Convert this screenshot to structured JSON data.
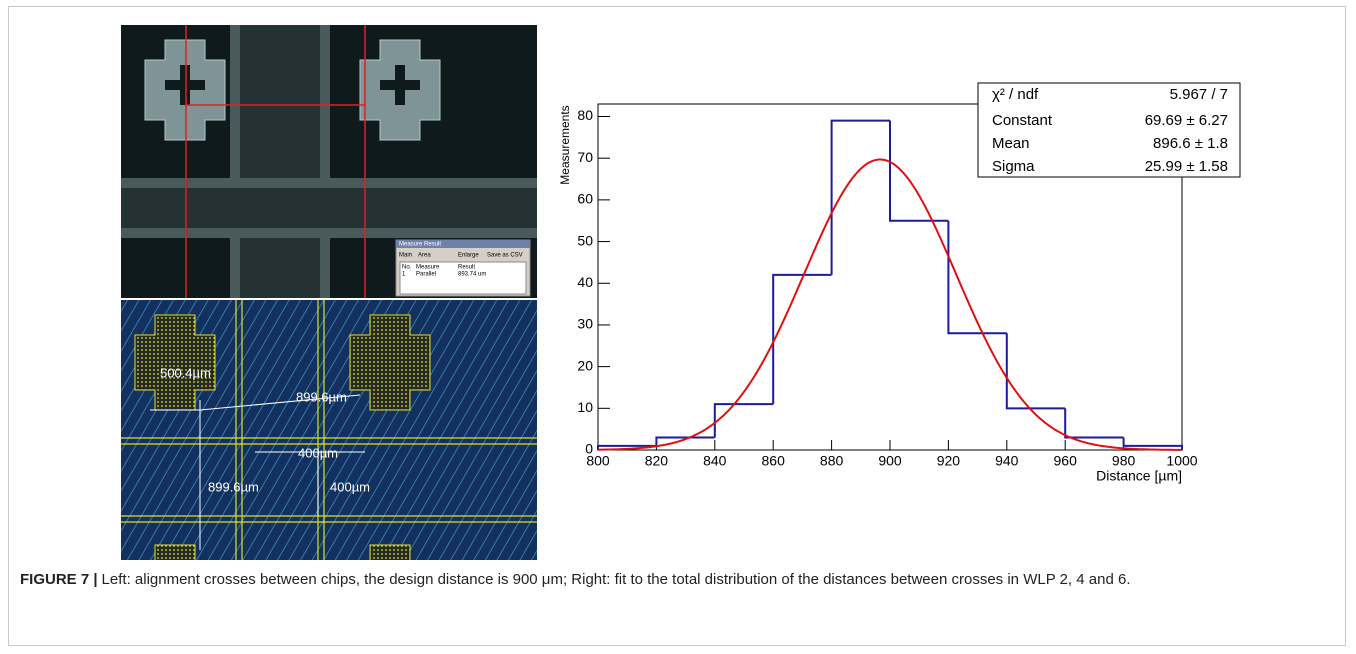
{
  "left_panel": {
    "measure_window": {
      "title": "Measure Result",
      "tabs": [
        "Main",
        "Area"
      ],
      "checkbox": "Enlarge",
      "button": "Save as CSV",
      "headers": [
        "No.",
        "Measure",
        "Result"
      ],
      "row": [
        "1",
        "Parallel",
        "893.74 um"
      ]
    },
    "annotations": [
      "500.4µm",
      "899.6µm",
      "400µm",
      "899.6µm",
      "400µm"
    ]
  },
  "chart_data": {
    "type": "histogram",
    "xlabel": "Distance [µm]",
    "ylabel": "Measurements",
    "bins": [
      800,
      820,
      840,
      860,
      880,
      900,
      920,
      940,
      960,
      980,
      1000
    ],
    "values": [
      1,
      3,
      11,
      42,
      79,
      55,
      28,
      10,
      3,
      1
    ],
    "color": "#1c1c9c",
    "xlim": [
      800,
      1000
    ],
    "ylim": [
      0,
      83
    ],
    "xticks": [
      800,
      820,
      840,
      860,
      880,
      900,
      920,
      940,
      960,
      980,
      1000
    ],
    "yticks": [
      0,
      10,
      20,
      30,
      40,
      50,
      60,
      70,
      80
    ],
    "fit": {
      "color": "#e01010",
      "constant": 69.69,
      "mean": 896.6,
      "sigma": 25.99
    },
    "stats_box": {
      "header": [
        "χ² / ndf",
        "5.967 / 7"
      ],
      "rows": [
        [
          "Constant",
          "69.69 ± 6.27"
        ],
        [
          "Mean",
          "896.6 ± 1.8"
        ],
        [
          "Sigma",
          "25.99 ± 1.58"
        ]
      ]
    }
  },
  "caption": {
    "label": "FIGURE 7 |",
    "text": "Left: alignment crosses between chips, the design distance is 900 μm; Right: fit to the total distribution of the distances between crosses in WLP 2, 4 and 6."
  }
}
